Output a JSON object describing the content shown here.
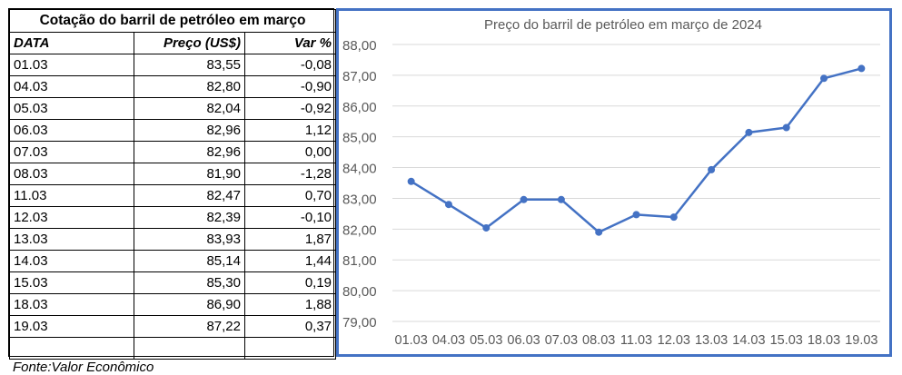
{
  "table": {
    "title": "Cotação do barril de petróleo em março",
    "headers": [
      "DATA",
      "Preço (US$)",
      "Var %"
    ],
    "rows": [
      [
        "01.03",
        "83,55",
        "-0,08"
      ],
      [
        "04.03",
        "82,80",
        "-0,90"
      ],
      [
        "05.03",
        "82,04",
        "-0,92"
      ],
      [
        "06.03",
        "82,96",
        "1,12"
      ],
      [
        "07.03",
        "82,96",
        "0,00"
      ],
      [
        "08.03",
        "81,90",
        "-1,28"
      ],
      [
        "11.03",
        "82,47",
        "0,70"
      ],
      [
        "12.03",
        "82,39",
        "-0,10"
      ],
      [
        "13.03",
        "83,93",
        "1,87"
      ],
      [
        "14.03",
        "85,14",
        "1,44"
      ],
      [
        "15.03",
        "85,30",
        "0,19"
      ],
      [
        "18.03",
        "86,90",
        "1,88"
      ],
      [
        "19.03",
        "87,22",
        "0,37"
      ]
    ]
  },
  "source": "Fonte:Valor Econômico",
  "chart_data": {
    "type": "line",
    "title": "Preço do barril de petróleo  em março de 2024",
    "categories": [
      "01.03",
      "04.03",
      "05.03",
      "06.03",
      "07.03",
      "08.03",
      "11.03",
      "12.03",
      "13.03",
      "14.03",
      "15.03",
      "18.03",
      "19.03"
    ],
    "series": [
      {
        "values": [
          83.55,
          82.8,
          82.04,
          82.96,
          82.96,
          81.9,
          82.47,
          82.39,
          83.93,
          85.14,
          85.3,
          86.9,
          87.22
        ]
      }
    ],
    "yticks": [
      "79,00",
      "80,00",
      "81,00",
      "82,00",
      "83,00",
      "84,00",
      "85,00",
      "86,00",
      "87,00",
      "88,00"
    ],
    "ylim": [
      79,
      88
    ],
    "grid": true,
    "line_color": "#4472c4",
    "grid_color": "#d9d9d9",
    "text_color": "#595959"
  }
}
